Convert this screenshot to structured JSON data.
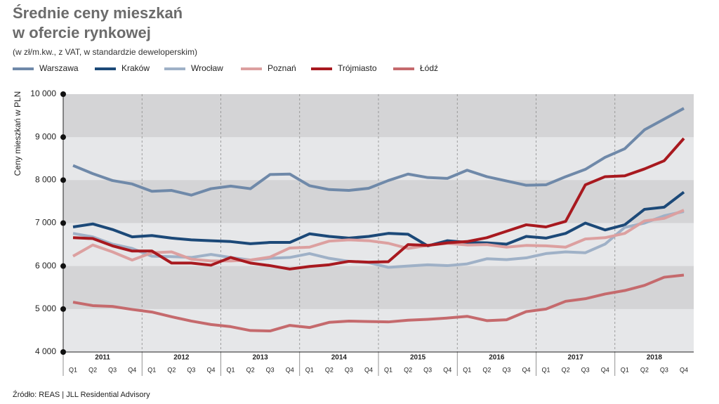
{
  "chart_data": {
    "type": "line",
    "title": [
      "Średnie ceny mieszkań",
      "w ofercie rynkowej"
    ],
    "subtitle": "(w zł/m.kw., z VAT, w standardzie deweloperskim)",
    "y_label": "Ceny mieszkań w PLN",
    "source": "Źródło: REAS | JLL Residential Advisory",
    "years": [
      "2011",
      "2012",
      "2013",
      "2014",
      "2015",
      "2016",
      "2017",
      "2018"
    ],
    "categories": [
      "Q1",
      "Q2",
      "Q3",
      "Q4",
      "Q1",
      "Q2",
      "Q3",
      "Q4",
      "Q1",
      "Q2",
      "Q3",
      "Q4",
      "Q1",
      "Q2",
      "Q3",
      "Q4",
      "Q1",
      "Q2",
      "Q3",
      "Q4",
      "Q1",
      "Q2",
      "Q3",
      "Q4",
      "Q1",
      "Q2",
      "Q3",
      "Q4",
      "Q1",
      "Q2",
      "Q3",
      "Q4"
    ],
    "ylim": [
      4000,
      10000
    ],
    "yticks": [
      {
        "value": 4000,
        "label": "4 000"
      },
      {
        "value": 5000,
        "label": "5 000"
      },
      {
        "value": 6000,
        "label": "6 000"
      },
      {
        "value": 7000,
        "label": "7 000"
      },
      {
        "value": 8000,
        "label": "8 000"
      },
      {
        "value": 9000,
        "label": "9 000"
      },
      {
        "value": 10000,
        "label": "10 000"
      }
    ],
    "series": [
      {
        "name": "Warszawa",
        "color": "#6f89a9",
        "values": [
          8340,
          8150,
          7990,
          7910,
          7740,
          7760,
          7650,
          7800,
          7860,
          7800,
          8130,
          8140,
          7870,
          7780,
          7760,
          7810,
          7990,
          8140,
          8060,
          8040,
          8230,
          8080,
          7980,
          7880,
          7890,
          8080,
          8250,
          8530,
          8730,
          9170,
          9420,
          9670
        ]
      },
      {
        "name": "Kraków",
        "color": "#1c4978",
        "values": [
          6910,
          6980,
          6850,
          6680,
          6710,
          6650,
          6610,
          6590,
          6570,
          6520,
          6550,
          6550,
          6750,
          6690,
          6650,
          6690,
          6760,
          6740,
          6470,
          6590,
          6550,
          6540,
          6510,
          6690,
          6650,
          6760,
          7000,
          6840,
          6960,
          7320,
          7370,
          7720
        ]
      },
      {
        "name": "Wrocław",
        "color": "#9fb1c7",
        "values": [
          6760,
          6680,
          6510,
          6410,
          6230,
          6220,
          6200,
          6270,
          6200,
          6140,
          6180,
          6200,
          6290,
          6180,
          6110,
          6080,
          5970,
          6000,
          6030,
          6010,
          6050,
          6170,
          6150,
          6190,
          6290,
          6330,
          6310,
          6510,
          6900,
          7000,
          7170,
          7270
        ]
      },
      {
        "name": "Poznań",
        "color": "#dca0a0",
        "values": [
          6230,
          6490,
          6330,
          6140,
          6310,
          6330,
          6160,
          6120,
          6120,
          6140,
          6210,
          6420,
          6440,
          6580,
          6610,
          6590,
          6530,
          6410,
          6480,
          6530,
          6490,
          6500,
          6440,
          6480,
          6470,
          6440,
          6630,
          6660,
          6760,
          7050,
          7110,
          7300
        ]
      },
      {
        "name": "Trójmiasto",
        "color": "#a8191f",
        "values": [
          6660,
          6640,
          6470,
          6350,
          6350,
          6070,
          6070,
          6020,
          6200,
          6070,
          6010,
          5930,
          5990,
          6030,
          6110,
          6090,
          6100,
          6500,
          6480,
          6540,
          6570,
          6660,
          6810,
          6960,
          6910,
          7040,
          7890,
          8080,
          8100,
          8260,
          8450,
          8970
        ]
      },
      {
        "name": "Łódź",
        "color": "#c56a6d",
        "values": [
          5160,
          5080,
          5060,
          4990,
          4930,
          4820,
          4720,
          4640,
          4590,
          4500,
          4490,
          4620,
          4570,
          4690,
          4720,
          4710,
          4700,
          4740,
          4760,
          4790,
          4830,
          4730,
          4750,
          4940,
          5000,
          5180,
          5240,
          5350,
          5430,
          5550,
          5740,
          5790
        ]
      }
    ]
  }
}
